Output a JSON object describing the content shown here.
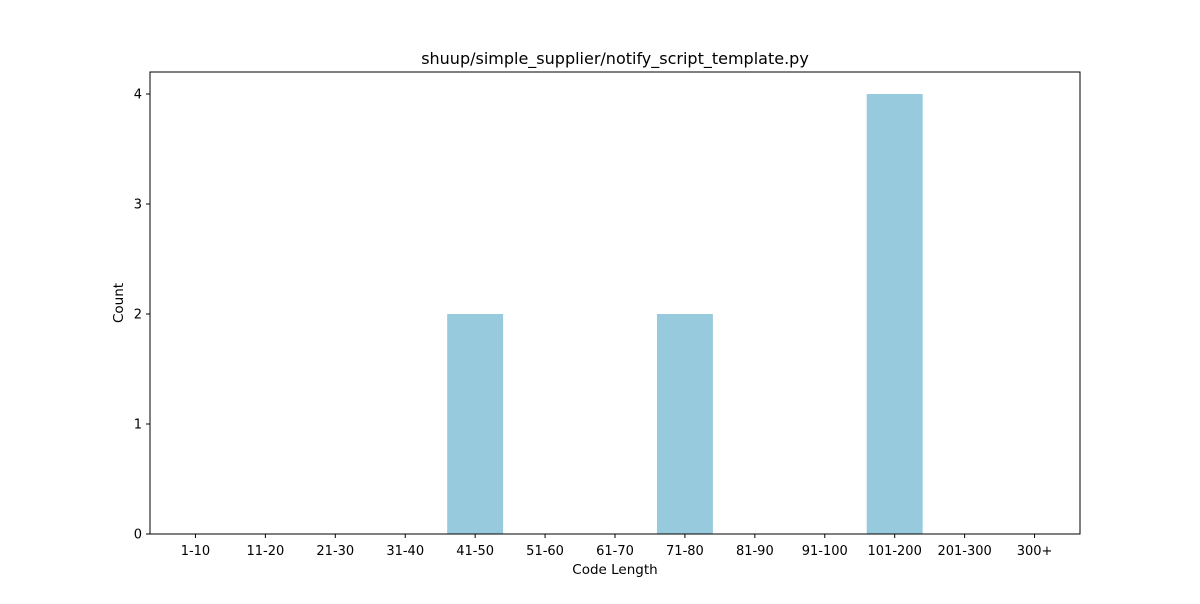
{
  "chart_data": {
    "type": "bar",
    "title": "shuup/simple_supplier/notify_script_template.py",
    "xlabel": "Code Length",
    "ylabel": "Count",
    "categories": [
      "1-10",
      "11-20",
      "21-30",
      "31-40",
      "41-50",
      "51-60",
      "61-70",
      "71-80",
      "81-90",
      "91-100",
      "101-200",
      "201-300",
      "300+"
    ],
    "values": [
      0,
      0,
      0,
      0,
      2,
      0,
      0,
      2,
      0,
      0,
      4,
      0,
      0
    ],
    "ylim": [
      0,
      4.2
    ],
    "yticks": [
      0,
      1,
      2,
      3,
      4
    ],
    "bar_color": "#96cadc",
    "grid": false,
    "legend": "none"
  }
}
